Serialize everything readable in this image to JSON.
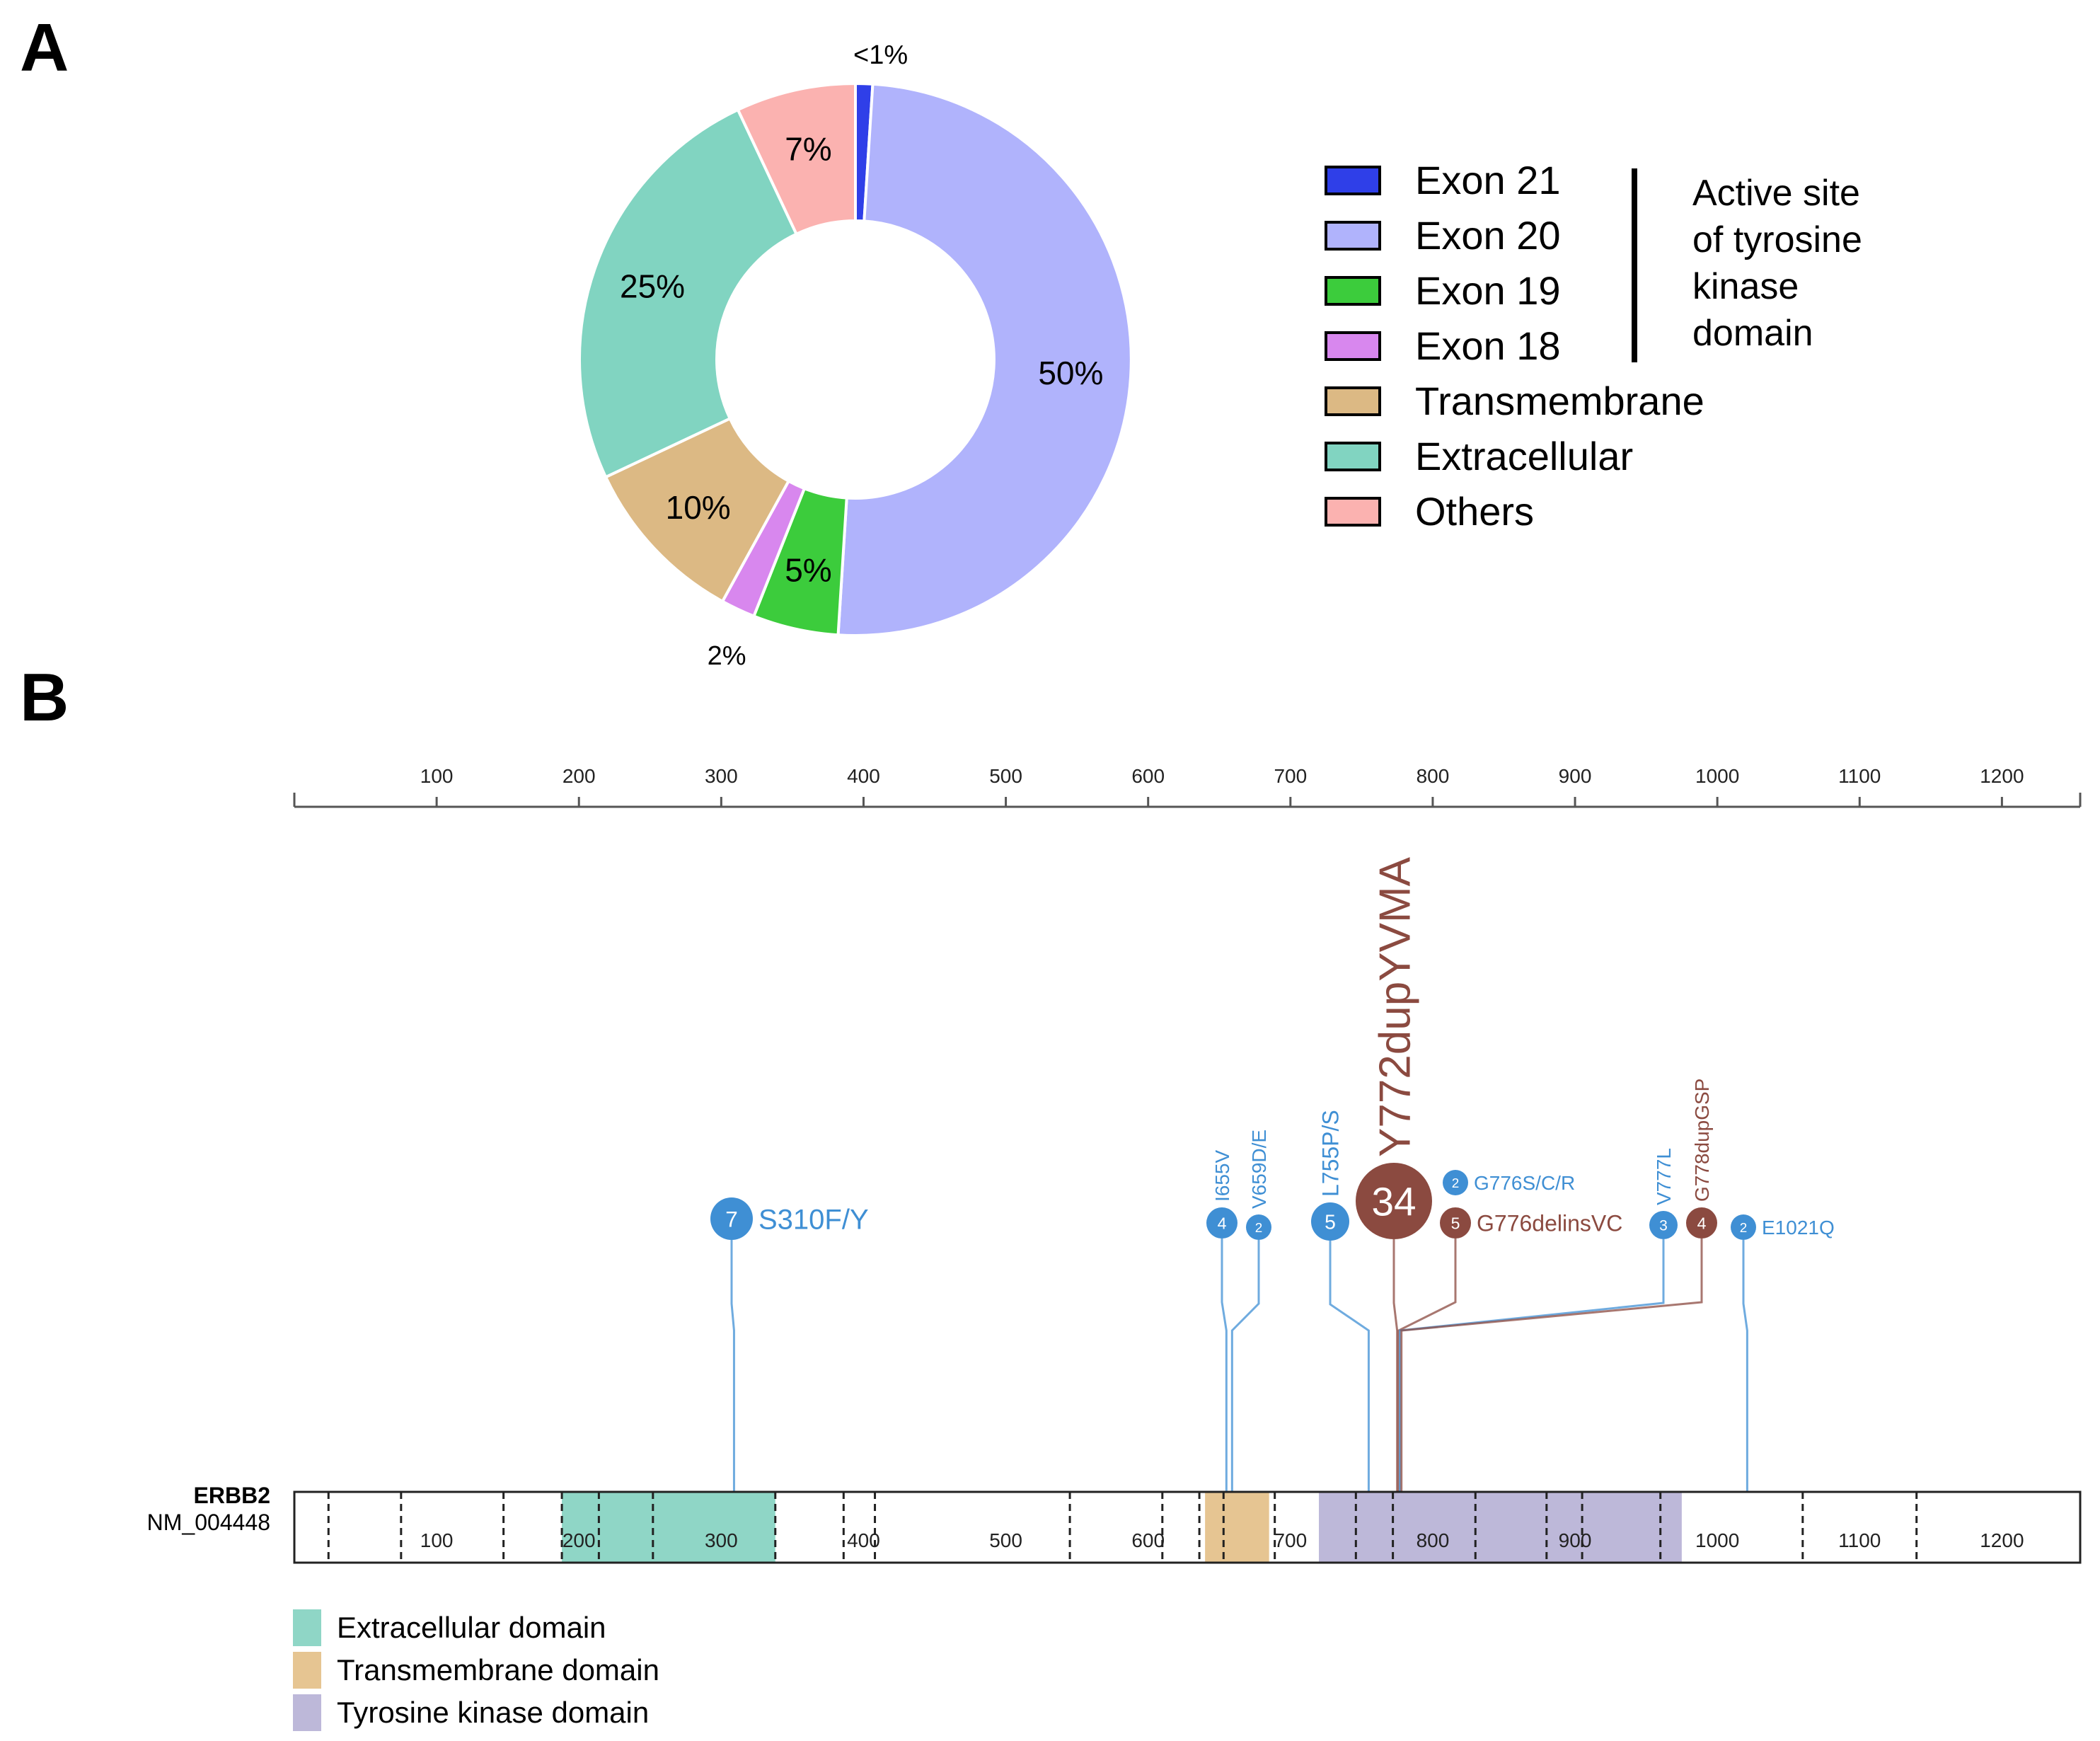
{
  "panels": {
    "a": "A",
    "b": "B"
  },
  "chart_data": [
    {
      "type": "pie",
      "subtype": "donut",
      "title": "",
      "slices": [
        {
          "name": "Exon 21",
          "value": 1,
          "label": "<1%",
          "color": "#2f3fe8"
        },
        {
          "name": "Exon 20",
          "value": 50,
          "label": "50%",
          "color": "#b0b3fc"
        },
        {
          "name": "Exon 19",
          "value": 5,
          "label": "5%",
          "color": "#3ccc3c"
        },
        {
          "name": "Exon 18",
          "value": 2,
          "label": "2%",
          "color": "#d887ee"
        },
        {
          "name": "Transmembrane",
          "value": 10,
          "label": "10%",
          "color": "#dcb984"
        },
        {
          "name": "Extracellular",
          "value": 25,
          "label": "25%",
          "color": "#81d4c1"
        },
        {
          "name": "Others",
          "value": 7,
          "label": "7%",
          "color": "#fbb2b0"
        }
      ],
      "legend": {
        "position": "right",
        "bracket_label": [
          "Active site",
          "of tyrosine",
          "kinase",
          "domain"
        ],
        "bracket_covers": [
          "Exon 21",
          "Exon 20",
          "Exon 19",
          "Exon 18"
        ]
      }
    },
    {
      "type": "lollipop",
      "gene": "ERBB2",
      "transcript": "NM_004448",
      "axis": {
        "min": 0,
        "max": 1255,
        "ticks": [
          100,
          200,
          300,
          400,
          500,
          600,
          700,
          800,
          900,
          1000,
          1100,
          1200
        ]
      },
      "domains": [
        {
          "name": "Extracellular domain",
          "start": 188,
          "end": 338,
          "color": "#8fd6c6"
        },
        {
          "name": "Transmembrane domain",
          "start": 640,
          "end": 685,
          "color": "#e6c592"
        },
        {
          "name": "Tyrosine kinase domain",
          "start": 720,
          "end": 975,
          "color": "#bdb8d9"
        }
      ],
      "exon_boundaries": [
        24,
        75,
        147,
        188,
        214,
        252,
        338,
        386,
        408,
        545,
        610,
        636,
        653,
        689,
        746,
        772,
        830,
        880,
        905,
        960,
        1060,
        1140
      ],
      "mutations": [
        {
          "label": "S310F/Y",
          "position": 309,
          "count": 7,
          "type": "missense",
          "color": "#3f8fd4"
        },
        {
          "label": "I655V",
          "position": 655,
          "count": 4,
          "type": "missense",
          "color": "#3f8fd4"
        },
        {
          "label": "V659D/E",
          "position": 659,
          "count": 2,
          "type": "missense",
          "color": "#3f8fd4"
        },
        {
          "label": "L755P/S",
          "position": 755,
          "count": 5,
          "type": "missense",
          "color": "#3f8fd4"
        },
        {
          "label": "Y772dupYVMA",
          "position": 775,
          "count": 34,
          "type": "inframe",
          "color": "#8b4a40"
        },
        {
          "label": "G776S/C/R",
          "position": 776,
          "count": 2,
          "type": "missense",
          "color": "#3f8fd4"
        },
        {
          "label": "G776delinsVC",
          "position": 776,
          "count": 5,
          "type": "inframe",
          "color": "#8b4a40"
        },
        {
          "label": "V777L",
          "position": 777,
          "count": 3,
          "type": "missense",
          "color": "#3f8fd4"
        },
        {
          "label": "G778dupGSP",
          "position": 778,
          "count": 4,
          "type": "inframe",
          "color": "#8b4a40"
        },
        {
          "label": "E1021Q",
          "position": 1021,
          "count": 2,
          "type": "missense",
          "color": "#3f8fd4"
        }
      ]
    }
  ]
}
